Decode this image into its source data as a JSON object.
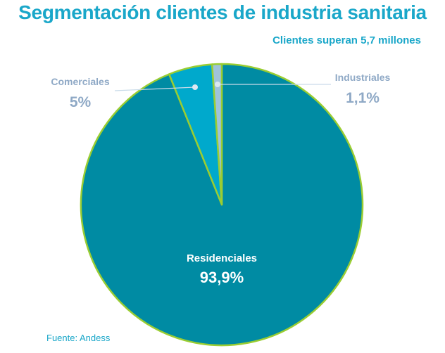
{
  "title": "Segmentación clientes de industria sanitaria",
  "subtitle": "Clientes superan 5,7 millones",
  "source": "Fuente: Andess",
  "colors": {
    "title": "#1aa7c9",
    "border": "#9acd32",
    "label_muted": "#8fa9c6"
  },
  "chart_data": {
    "type": "pie",
    "title": "Segmentación clientes de industria sanitaria",
    "subtitle": "Clientes superan 5,7 millones",
    "slices": [
      {
        "name": "Residenciales",
        "value": 93.9,
        "label": "93,9%",
        "color": "#008ba3"
      },
      {
        "name": "Comerciales",
        "value": 5.0,
        "label": "5%",
        "color": "#00a9cc"
      },
      {
        "name": "Industriales",
        "value": 1.1,
        "label": "1,1%",
        "color": "#9fc3db"
      }
    ]
  }
}
